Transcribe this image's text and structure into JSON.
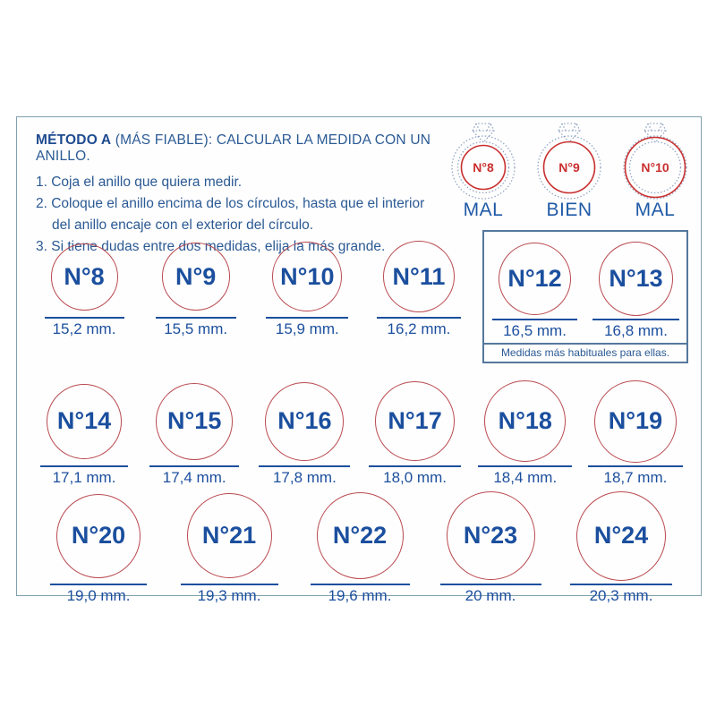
{
  "method": {
    "title_bold": "MÉTODO A",
    "title_rest": " (MÁS FIABLE): CALCULAR LA MEDIDA CON UN ANILLO.",
    "steps": [
      "1. Coja el anillo que quiera medir.",
      "2. Coloque el anillo encima de los círculos, hasta que el interior del anillo encaje con el exterior del círculo.",
      "3. Si tiene dudas entre dos medidas, elija la más grande."
    ]
  },
  "ring_examples": [
    {
      "label": "N°8",
      "verdict": "MAL",
      "fit": "small"
    },
    {
      "label": "N°9",
      "verdict": "BIEN",
      "fit": "exact"
    },
    {
      "label": "N°10",
      "verdict": "MAL",
      "fit": "large"
    }
  ],
  "highlight": {
    "caption": "Medidas más habituales para ellas."
  },
  "row1": [
    {
      "label": "N°8",
      "mm": 15.2,
      "mm_text": "15,2 mm."
    },
    {
      "label": "N°9",
      "mm": 15.5,
      "mm_text": "15,5 mm."
    },
    {
      "label": "N°10",
      "mm": 15.9,
      "mm_text": "15,9 mm."
    },
    {
      "label": "N°11",
      "mm": 16.2,
      "mm_text": "16,2 mm."
    }
  ],
  "row1_highlight": [
    {
      "label": "N°12",
      "mm": 16.5,
      "mm_text": "16,5 mm."
    },
    {
      "label": "N°13",
      "mm": 16.8,
      "mm_text": "16,8 mm."
    }
  ],
  "row2": [
    {
      "label": "N°14",
      "mm": 17.1,
      "mm_text": "17,1 mm."
    },
    {
      "label": "N°15",
      "mm": 17.4,
      "mm_text": "17,4 mm."
    },
    {
      "label": "N°16",
      "mm": 17.8,
      "mm_text": "17,8 mm."
    },
    {
      "label": "N°17",
      "mm": 18.0,
      "mm_text": "18,0 mm."
    },
    {
      "label": "N°18",
      "mm": 18.4,
      "mm_text": "18,4 mm."
    },
    {
      "label": "N°19",
      "mm": 18.7,
      "mm_text": "18,7 mm."
    }
  ],
  "row3": [
    {
      "label": "N°20",
      "mm": 19.0,
      "mm_text": "19,0 mm."
    },
    {
      "label": "N°21",
      "mm": 19.3,
      "mm_text": "19,3 mm."
    },
    {
      "label": "N°22",
      "mm": 19.6,
      "mm_text": "19,6 mm."
    },
    {
      "label": "N°23",
      "mm": 20.0,
      "mm_text": "20 mm."
    },
    {
      "label": "N°24",
      "mm": 20.3,
      "mm_text": "20,3 mm."
    }
  ],
  "colors": {
    "text_blue": "#1b4f9e",
    "circle_red": "#b84a50",
    "icon_red": "#c92f2f",
    "band_gray": "#93a7c4",
    "frame_border": "#7fa0ac",
    "box_border": "#54789c"
  }
}
